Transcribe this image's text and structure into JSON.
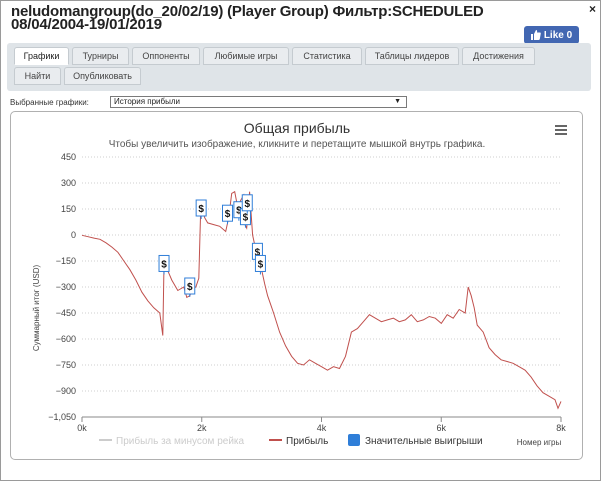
{
  "window": {
    "title": "neludomangroup(do_20/02/19) (Player Group) Фильтр:SCHEDULED 08/04/2004-19/01/2019",
    "close_glyph": "×",
    "like_label": "Like 0"
  },
  "tabs": [
    {
      "label": "Графики",
      "active": true
    },
    {
      "label": "Турниры"
    },
    {
      "label": "Оппоненты"
    },
    {
      "label": "Любимые игры"
    },
    {
      "label": "Статистика"
    },
    {
      "label": "Таблицы лидеров"
    },
    {
      "label": "Достижения"
    },
    {
      "label": "Найти"
    },
    {
      "label": "Опубликовать"
    }
  ],
  "selector": {
    "label": "Выбранные графики:",
    "value": "История прибыли"
  },
  "chart": {
    "title": "Общая прибыль",
    "subtitle": "Чтобы увеличить изображение, кликните и перетащите мышкой внутрь графика.",
    "menu_icon": "hamburger-icon",
    "ylabel": "Суммарный итог (USD)",
    "xlabel": "Номер игры",
    "legend": [
      "Прибыль за минусом рейка",
      "Прибыль",
      "Значительные выигрыши"
    ],
    "colors": {
      "profit": "#c0504d",
      "rake_disabled": "#cccccc",
      "marker_border": "#2f7ed8",
      "marker_legend": "#2f7ed8",
      "grid": "#c8c8c8"
    }
  },
  "chart_data": {
    "type": "line",
    "title": "Общая прибыль",
    "subtitle": "Чтобы увеличить изображение, кликните и перетащите мышкой внутрь графика.",
    "xlabel": "Номер игры",
    "ylabel": "Суммарный итог (USD)",
    "xlim": [
      0,
      8000
    ],
    "ylim": [
      -1050,
      450
    ],
    "x_ticks": [
      0,
      2000,
      4000,
      6000,
      8000
    ],
    "x_tick_labels": [
      "0k",
      "2k",
      "4k",
      "6k",
      "8k"
    ],
    "y_ticks": [
      450,
      300,
      150,
      0,
      -150,
      -300,
      -450,
      -600,
      -750,
      -900,
      -1050
    ],
    "y_tick_labels": [
      "450",
      "300",
      "150",
      "0",
      "−150",
      "−300",
      "−450",
      "−600",
      "−750",
      "−900",
      "−1,050"
    ],
    "grid": true,
    "legend_position": "bottom",
    "series": [
      {
        "name": "Прибыль",
        "color": "#c0504d",
        "x": [
          0,
          100,
          200,
          300,
          400,
          500,
          600,
          700,
          800,
          900,
          1000,
          1100,
          1200,
          1300,
          1350,
          1370,
          1400,
          1450,
          1500,
          1600,
          1700,
          1750,
          1800,
          1850,
          1900,
          1950,
          1980,
          2000,
          2050,
          2100,
          2200,
          2300,
          2400,
          2450,
          2500,
          2550,
          2600,
          2650,
          2700,
          2720,
          2750,
          2800,
          2850,
          2900,
          2950,
          3000,
          3050,
          3100,
          3150,
          3200,
          3300,
          3400,
          3500,
          3600,
          3700,
          3800,
          3900,
          4000,
          4100,
          4200,
          4300,
          4400,
          4500,
          4600,
          4700,
          4800,
          4900,
          5000,
          5100,
          5200,
          5300,
          5400,
          5500,
          5600,
          5700,
          5800,
          5900,
          6000,
          6100,
          6200,
          6300,
          6400,
          6450,
          6500,
          6550,
          6600,
          6700,
          6800,
          6900,
          7000,
          7100,
          7200,
          7300,
          7400,
          7500,
          7600,
          7700,
          7800,
          7900,
          7950,
          8000
        ],
        "y": [
          -2,
          -10,
          -18,
          -25,
          -45,
          -70,
          -100,
          -150,
          -200,
          -260,
          -330,
          -380,
          -420,
          -450,
          -580,
          -170,
          -180,
          -220,
          -260,
          -320,
          -300,
          -360,
          -350,
          -310,
          -300,
          -250,
          130,
          150,
          100,
          70,
          60,
          50,
          20,
          100,
          240,
          250,
          160,
          200,
          230,
          60,
          40,
          250,
          0,
          -80,
          -130,
          -200,
          -280,
          -350,
          -400,
          -450,
          -560,
          -640,
          -700,
          -740,
          -750,
          -720,
          -740,
          -760,
          -780,
          -760,
          -770,
          -700,
          -560,
          -540,
          -500,
          -460,
          -480,
          -500,
          -490,
          -480,
          -500,
          -490,
          -460,
          -500,
          -490,
          -470,
          -480,
          -510,
          -460,
          -480,
          -430,
          -450,
          -300,
          -350,
          -420,
          -520,
          -560,
          -650,
          -690,
          -720,
          -730,
          -740,
          -760,
          -780,
          -820,
          -870,
          -910,
          -930,
          -950,
          -1000,
          -960
        ]
      }
    ],
    "markers": {
      "name": "Значительные выигрыши",
      "label": "$",
      "x": [
        1370,
        1800,
        1990,
        2430,
        2620,
        2730,
        2760,
        2930,
        2980
      ],
      "y": [
        -170,
        -300,
        150,
        120,
        140,
        100,
        180,
        -100,
        -170
      ]
    }
  }
}
